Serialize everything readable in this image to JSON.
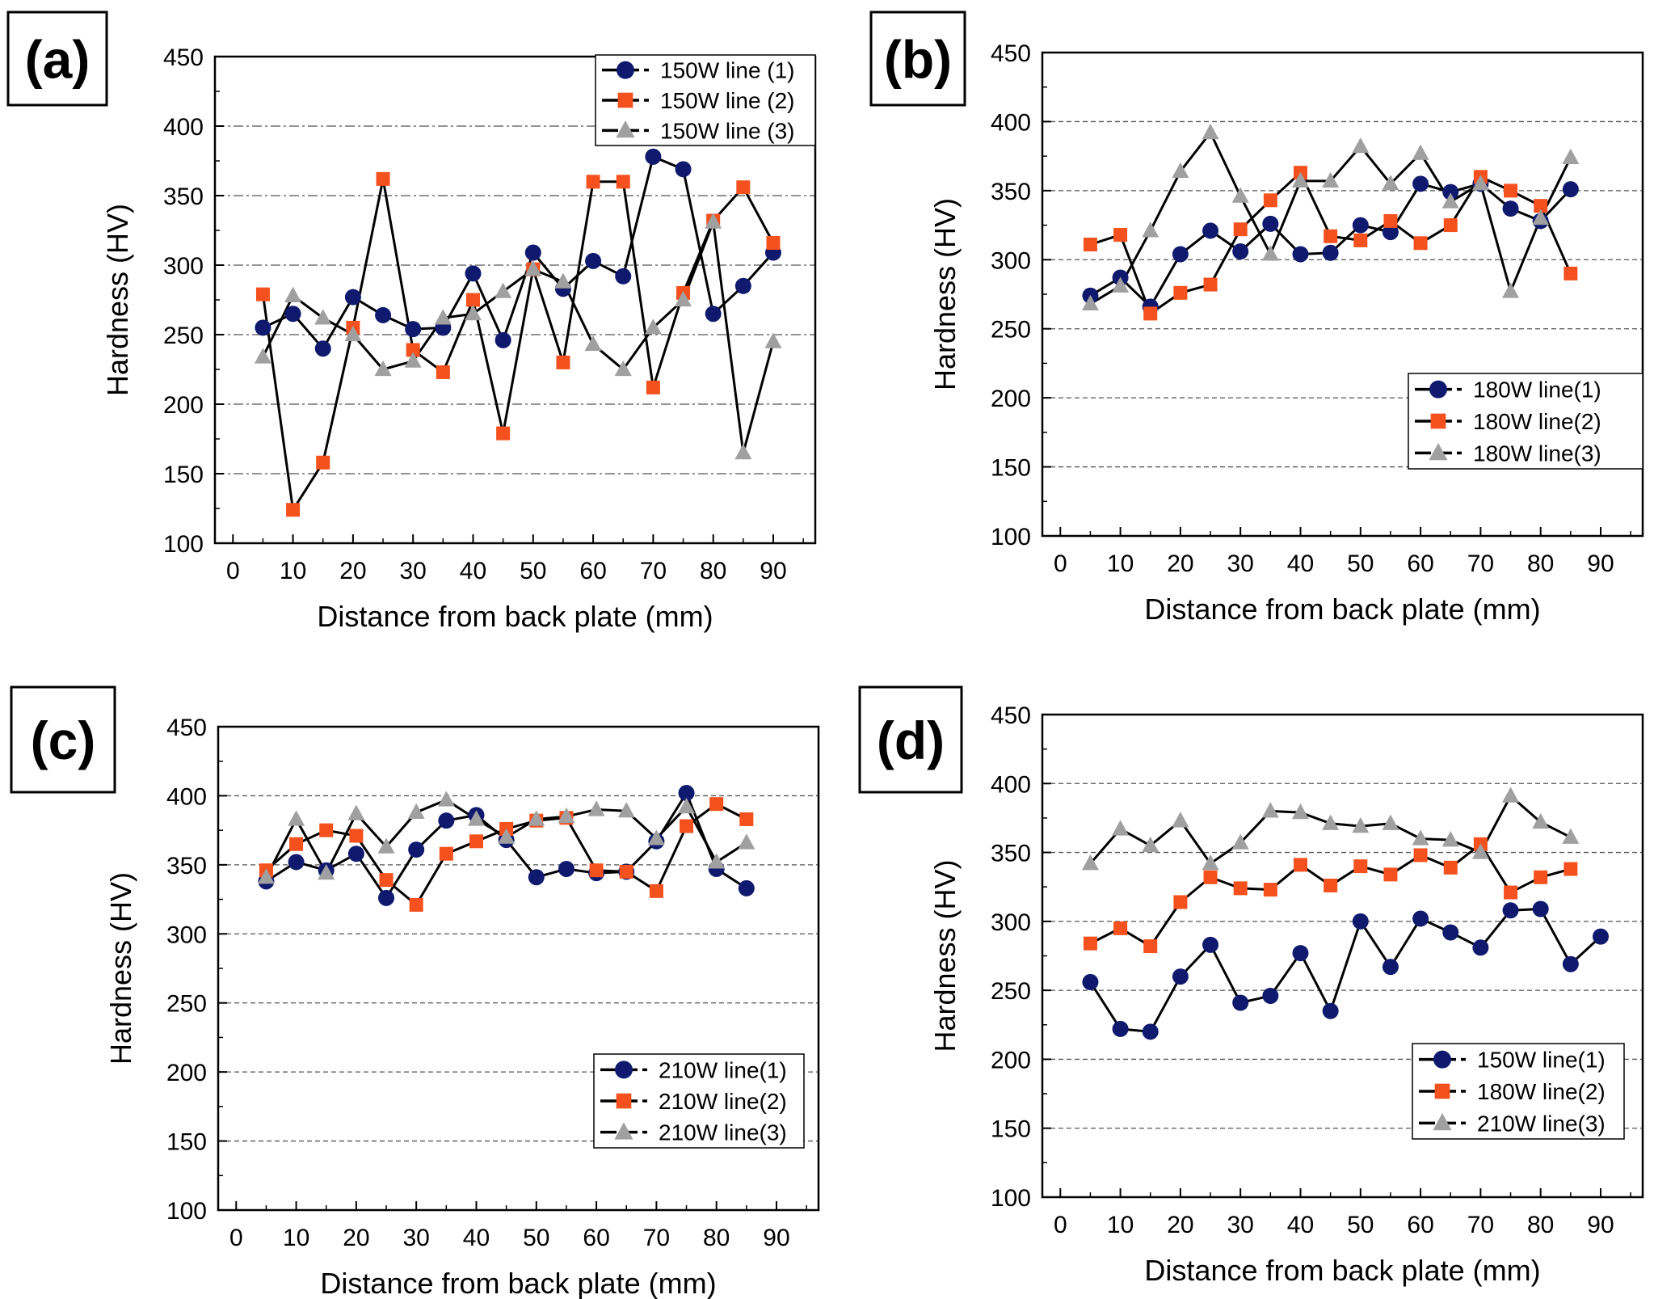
{
  "chart_data": [
    {
      "type": "line",
      "panel_label": "(a)",
      "xlabel": "Distance from back plate (mm)",
      "ylabel": "Hardness (HV)",
      "xlim": [
        -3,
        97
      ],
      "ylim": [
        100,
        450
      ],
      "xticks": [
        0,
        10,
        20,
        30,
        40,
        50,
        60,
        70,
        80,
        90
      ],
      "yticks": [
        100,
        150,
        200,
        250,
        300,
        350,
        400,
        450
      ],
      "grid": "dash-dot",
      "legend_position": "top-right",
      "series": [
        {
          "name": "150W line (1)",
          "marker": "circle",
          "color": "#0f1a6e",
          "x": [
            5,
            10,
            15,
            20,
            25,
            30,
            35,
            40,
            45,
            50,
            55,
            60,
            65,
            70,
            75,
            80,
            85,
            90
          ],
          "values": [
            255,
            265,
            240,
            277,
            264,
            254,
            255,
            294,
            246,
            309,
            283,
            303,
            292,
            378,
            369,
            265,
            285,
            309
          ]
        },
        {
          "name": "150W line (2)",
          "marker": "square",
          "color": "#f4511e",
          "x": [
            5,
            10,
            15,
            20,
            25,
            30,
            35,
            40,
            45,
            50,
            55,
            60,
            65,
            70,
            75,
            80,
            85,
            90
          ],
          "values": [
            279,
            124,
            158,
            255,
            362,
            239,
            223,
            275,
            179,
            297,
            230,
            360,
            360,
            212,
            280,
            332,
            356,
            316
          ]
        },
        {
          "name": "150W line (3)",
          "marker": "triangle",
          "color": "#a0a0a0",
          "x": [
            5,
            10,
            15,
            20,
            25,
            30,
            35,
            40,
            45,
            50,
            55,
            60,
            65,
            70,
            75,
            80,
            85,
            90
          ],
          "values": [
            234,
            278,
            262,
            250,
            225,
            231,
            262,
            265,
            281,
            297,
            288,
            243,
            225,
            255,
            275,
            331,
            165,
            245
          ]
        }
      ]
    },
    {
      "type": "line",
      "panel_label": "(b)",
      "xlabel": "Distance from back plate (mm)",
      "ylabel": "Hardness (HV)",
      "xlim": [
        -3,
        97
      ],
      "ylim": [
        100,
        450
      ],
      "xticks": [
        0,
        10,
        20,
        30,
        40,
        50,
        60,
        70,
        80,
        90
      ],
      "yticks": [
        100,
        150,
        200,
        250,
        300,
        350,
        400,
        450
      ],
      "grid": "dashed",
      "legend_position": "bottom-right",
      "series": [
        {
          "name": "180W line(1)",
          "marker": "circle",
          "color": "#0f1a6e",
          "x": [
            5,
            10,
            15,
            20,
            25,
            30,
            35,
            40,
            45,
            50,
            55,
            60,
            65,
            70,
            75,
            80,
            85
          ],
          "values": [
            274,
            287,
            266,
            304,
            321,
            306,
            326,
            304,
            305,
            325,
            320,
            355,
            349,
            355,
            337,
            328,
            351
          ]
        },
        {
          "name": "180W line(2)",
          "marker": "square",
          "color": "#f4511e",
          "x": [
            5,
            10,
            15,
            20,
            25,
            30,
            35,
            40,
            45,
            50,
            55,
            60,
            65,
            70,
            75,
            80,
            85
          ],
          "values": [
            311,
            318,
            261,
            276,
            282,
            322,
            343,
            363,
            317,
            314,
            328,
            312,
            325,
            360,
            350,
            339,
            290
          ]
        },
        {
          "name": "180W line(3)",
          "marker": "triangle",
          "color": "#a0a0a0",
          "x": [
            5,
            10,
            15,
            20,
            25,
            30,
            35,
            40,
            45,
            50,
            55,
            60,
            65,
            70,
            75,
            80,
            85
          ],
          "values": [
            268,
            281,
            321,
            364,
            392,
            346,
            304,
            357,
            357,
            382,
            355,
            377,
            342,
            355,
            277,
            330,
            374
          ]
        }
      ]
    },
    {
      "type": "line",
      "panel_label": "(c)",
      "xlabel": "Distance from back plate (mm)",
      "ylabel": "Hardness (HV)",
      "xlim": [
        -3,
        97
      ],
      "ylim": [
        100,
        450
      ],
      "xticks": [
        0,
        10,
        20,
        30,
        40,
        50,
        60,
        70,
        80,
        90
      ],
      "yticks": [
        100,
        150,
        200,
        250,
        300,
        350,
        400,
        450
      ],
      "grid": "dashed",
      "legend_position": "bottom-right",
      "series": [
        {
          "name": "210W line(1)",
          "marker": "circle",
          "color": "#0f1a6e",
          "x": [
            5,
            10,
            15,
            20,
            25,
            30,
            35,
            40,
            45,
            50,
            55,
            60,
            65,
            70,
            75,
            80,
            85
          ],
          "values": [
            338,
            352,
            346,
            358,
            326,
            361,
            382,
            386,
            368,
            341,
            347,
            344,
            345,
            367,
            402,
            347,
            333
          ]
        },
        {
          "name": "210W line(2)",
          "marker": "square",
          "color": "#f4511e",
          "x": [
            5,
            10,
            15,
            20,
            25,
            30,
            35,
            40,
            45,
            50,
            55,
            60,
            65,
            70,
            75,
            80,
            85
          ],
          "values": [
            346,
            365,
            375,
            371,
            339,
            321,
            358,
            367,
            376,
            382,
            384,
            346,
            345,
            331,
            378,
            394,
            383
          ]
        },
        {
          "name": "210W line(3)",
          "marker": "triangle",
          "color": "#a0a0a0",
          "x": [
            5,
            10,
            15,
            20,
            25,
            30,
            35,
            40,
            45,
            50,
            55,
            60,
            65,
            70,
            75,
            80,
            85
          ],
          "values": [
            341,
            383,
            344,
            387,
            363,
            388,
            397,
            383,
            370,
            383,
            385,
            390,
            389,
            369,
            392,
            352,
            366
          ]
        }
      ]
    },
    {
      "type": "line",
      "panel_label": "(d)",
      "xlabel": "Distance from back plate (mm)",
      "ylabel": "Hardness (HV)",
      "xlim": [
        -3,
        97
      ],
      "ylim": [
        100,
        450
      ],
      "xticks": [
        0,
        10,
        20,
        30,
        40,
        50,
        60,
        70,
        80,
        90
      ],
      "yticks": [
        100,
        150,
        200,
        250,
        300,
        350,
        400,
        450
      ],
      "grid": "dashed",
      "legend_position": "bottom-right",
      "series": [
        {
          "name": "150W line(1)",
          "marker": "circle",
          "color": "#0f1a6e",
          "x": [
            5,
            10,
            15,
            20,
            25,
            30,
            35,
            40,
            45,
            50,
            55,
            60,
            65,
            70,
            75,
            80,
            85,
            90
          ],
          "values": [
            256,
            222,
            220,
            260,
            283,
            241,
            246,
            277,
            235,
            300,
            267,
            302,
            292,
            281,
            308,
            309,
            269,
            289
          ]
        },
        {
          "name": "180W line(2)",
          "marker": "square",
          "color": "#f4511e",
          "x": [
            5,
            10,
            15,
            20,
            25,
            30,
            35,
            40,
            45,
            50,
            55,
            60,
            65,
            70,
            75,
            80,
            85
          ],
          "values": [
            284,
            295,
            282,
            314,
            332,
            324,
            323,
            341,
            326,
            340,
            334,
            348,
            339,
            356,
            321,
            332,
            338
          ]
        },
        {
          "name": "210W line(3)",
          "marker": "triangle",
          "color": "#a0a0a0",
          "x": [
            5,
            10,
            15,
            20,
            25,
            30,
            35,
            40,
            45,
            50,
            55,
            60,
            65,
            70,
            75,
            80,
            85
          ],
          "values": [
            342,
            367,
            355,
            373,
            342,
            357,
            380,
            379,
            371,
            369,
            371,
            360,
            359,
            350,
            391,
            372,
            361
          ]
        }
      ]
    }
  ]
}
